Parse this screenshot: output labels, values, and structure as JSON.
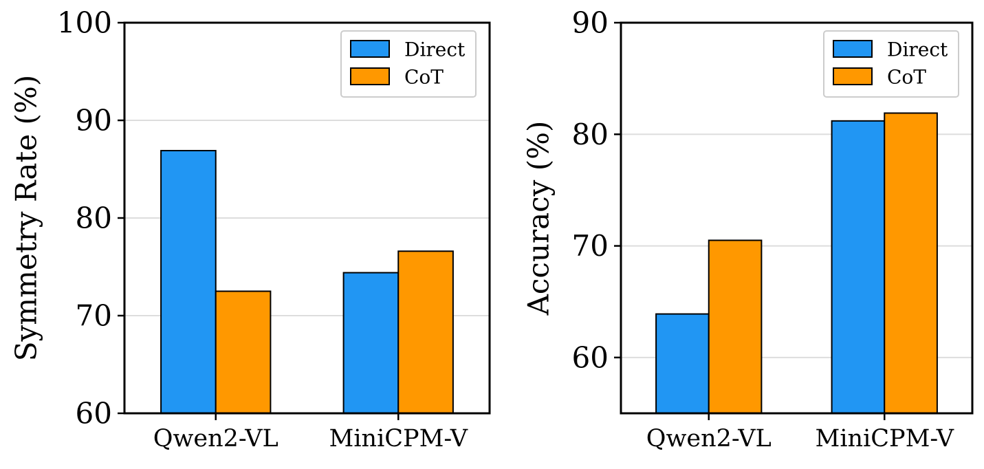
{
  "chart_data": [
    {
      "type": "bar",
      "categories": [
        "Qwen2-VL",
        "MiniCPM-V"
      ],
      "series": [
        {
          "name": "Direct",
          "values": [
            86.9,
            74.4
          ]
        },
        {
          "name": "CoT",
          "values": [
            72.5,
            76.6
          ]
        }
      ],
      "title": "",
      "xlabel": "",
      "ylabel": "Symmetry Rate (%)",
      "ylim": [
        60,
        100
      ],
      "yticks": [
        60,
        70,
        80,
        90,
        100
      ],
      "grid": "horizontal",
      "legend": "top-right"
    },
    {
      "type": "bar",
      "categories": [
        "Qwen2-VL",
        "MiniCPM-V"
      ],
      "series": [
        {
          "name": "Direct",
          "values": [
            63.9,
            81.2
          ]
        },
        {
          "name": "CoT",
          "values": [
            70.5,
            81.9
          ]
        }
      ],
      "title": "",
      "xlabel": "",
      "ylabel": "Accuracy (%)",
      "ylim": [
        55,
        90
      ],
      "yticks": [
        60,
        70,
        80,
        90
      ],
      "grid": "horizontal",
      "legend": "top-right"
    }
  ],
  "colors": {
    "Direct": "#2196F3",
    "CoT": "#FF9800",
    "grid": "#dddddd",
    "edge": "#000000"
  }
}
